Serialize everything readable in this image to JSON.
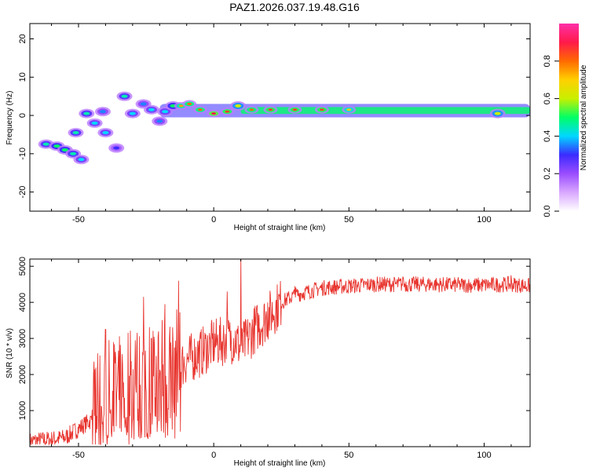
{
  "title": "PAZ1.2026.037.19.48.G16",
  "chart_data": [
    {
      "type": "heatmap",
      "xlabel": "Height of straight line (km)",
      "ylabel": "Frequency (Hz)",
      "xlim": [
        -68,
        117
      ],
      "ylim": [
        -25,
        24
      ],
      "xticks": [
        -50,
        0,
        50,
        100
      ],
      "yticks": [
        -20,
        -10,
        0,
        10,
        20
      ],
      "colorbar": {
        "label": "Normalized spectral amplitude",
        "range": [
          0,
          1
        ],
        "ticks": [
          0.0,
          0.2,
          0.4,
          0.6,
          0.8
        ],
        "colors": [
          "#ffffff",
          "#d9a8ff",
          "#9a4dff",
          "#3b2bff",
          "#00d8ff",
          "#00ff66",
          "#c8f000",
          "#ffd000",
          "#ff6a00",
          "#ff1a4a",
          "#ff2fa8"
        ]
      },
      "blobs": [
        {
          "x": -62,
          "y": -7.5,
          "value": 0.45
        },
        {
          "x": -58,
          "y": -8,
          "value": 0.5
        },
        {
          "x": -55,
          "y": -9,
          "value": 0.5
        },
        {
          "x": -52,
          "y": -10,
          "value": 0.45
        },
        {
          "x": -49,
          "y": -11.5,
          "value": 0.4
        },
        {
          "x": -51,
          "y": -4.5,
          "value": 0.45
        },
        {
          "x": -47,
          "y": 0.5,
          "value": 0.45
        },
        {
          "x": -44,
          "y": -2,
          "value": 0.4
        },
        {
          "x": -40,
          "y": -4.5,
          "value": 0.4
        },
        {
          "x": -36,
          "y": -8.5,
          "value": 0.3
        },
        {
          "x": -41,
          "y": 1,
          "value": 0.35
        },
        {
          "x": -33,
          "y": 5,
          "value": 0.45
        },
        {
          "x": -30,
          "y": 0.5,
          "value": 0.4
        },
        {
          "x": -26,
          "y": 3,
          "value": 0.35
        },
        {
          "x": -23,
          "y": 1.5,
          "value": 0.4
        },
        {
          "x": -20,
          "y": -1.5,
          "value": 0.35
        },
        {
          "x": -18,
          "y": 1,
          "value": 0.4
        },
        {
          "x": -15,
          "y": 2.5,
          "value": 0.5
        },
        {
          "x": -12,
          "y": 2.5,
          "value": 0.75
        },
        {
          "x": -9,
          "y": 3,
          "value": 0.8
        },
        {
          "x": -5,
          "y": 1.5,
          "value": 0.8
        },
        {
          "x": 0,
          "y": 0.5,
          "value": 0.9
        },
        {
          "x": 5,
          "y": 1,
          "value": 0.85
        },
        {
          "x": 9,
          "y": 2.5,
          "value": 0.6
        },
        {
          "x": 14,
          "y": 1.5,
          "value": 0.8
        },
        {
          "x": 21,
          "y": 1.5,
          "value": 0.85
        },
        {
          "x": 30,
          "y": 1.5,
          "value": 0.85
        },
        {
          "x": 40,
          "y": 1.5,
          "value": 0.85
        },
        {
          "x": 50,
          "y": 1.5,
          "value": 0.7
        },
        {
          "x": 105,
          "y": 0.5,
          "value": 0.6
        }
      ]
    },
    {
      "type": "line",
      "xlabel": "Height of straight line (km)",
      "ylabel": "SNR (10 * v/v)",
      "xlim": [
        -68,
        117
      ],
      "ylim": [
        0,
        5200
      ],
      "xticks": [
        -50,
        0,
        50,
        100
      ],
      "yticks": [
        1000,
        2000,
        3000,
        4000,
        5000
      ],
      "color": "#e8352f",
      "series": [
        {
          "name": "SNR",
          "x": [
            -68,
            -60,
            -55,
            -50,
            -45,
            -40,
            -35,
            -30,
            -25,
            -20,
            -15,
            -13,
            -10,
            -5,
            0,
            5,
            8,
            10,
            15,
            20,
            25,
            30,
            35,
            40,
            50,
            60,
            70,
            80,
            90,
            100,
            110,
            117
          ],
          "y": [
            150,
            200,
            250,
            500,
            750,
            1200,
            1500,
            1700,
            1900,
            2000,
            2100,
            2200,
            2400,
            2600,
            2850,
            2950,
            3000,
            2700,
            3250,
            3600,
            4000,
            4200,
            4300,
            4400,
            4450,
            4500,
            4500,
            4500,
            4480,
            4480,
            4500,
            4450
          ]
        }
      ],
      "spikes": [
        {
          "x": -40,
          "y": 3250
        },
        {
          "x": -37,
          "y": 2900
        },
        {
          "x": -29,
          "y": 2950
        },
        {
          "x": -26,
          "y": 4150
        },
        {
          "x": -23,
          "y": 3000
        },
        {
          "x": -18,
          "y": 3950
        },
        {
          "x": -13,
          "y": 4600
        },
        {
          "x": 0,
          "y": 3450
        },
        {
          "x": 5,
          "y": 4300
        },
        {
          "x": 10,
          "y": 5250
        },
        {
          "x": 20,
          "y": 4000
        },
        {
          "x": 30,
          "y": 4450
        },
        {
          "x": 70,
          "y": 4700
        },
        {
          "x": 110,
          "y": 4750
        }
      ]
    }
  ]
}
